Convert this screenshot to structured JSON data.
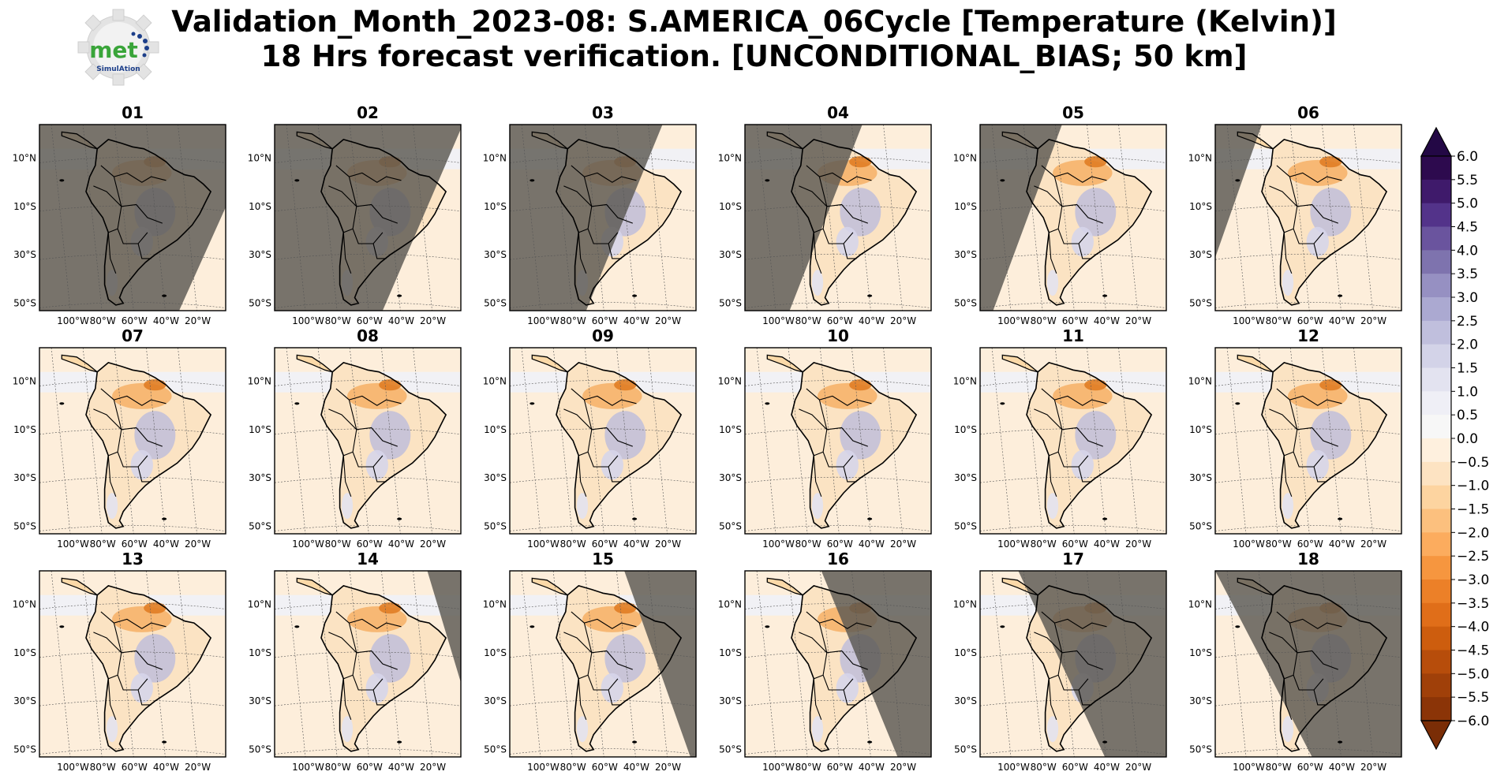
{
  "title_line1": "Validation_Month_2023-08: S.AMERICA_06Cycle [Temperature (Kelvin)]",
  "title_line2": "18 Hrs forecast verification. [UNCONDITIONAL_BIAS; 50 km]",
  "logo": {
    "text": "met",
    "subtext": "SimulAtion"
  },
  "chart_data": {
    "type": "heatmap",
    "panels": [
      "01",
      "02",
      "03",
      "04",
      "05",
      "06",
      "07",
      "08",
      "09",
      "10",
      "11",
      "12",
      "13",
      "14",
      "15",
      "16",
      "17",
      "18"
    ],
    "lat_ticks": [
      "10°N",
      "10°S",
      "30°S",
      "50°S"
    ],
    "lon_ticks": [
      "100°W",
      "80°W",
      "60°W",
      "40°W",
      "20°W"
    ],
    "night_shading": {
      "01": "left",
      "02": "left",
      "03": "left",
      "04": "left",
      "05": "left",
      "06": "left",
      "07": "none",
      "08": "none",
      "09": "none",
      "10": "none",
      "11": "none",
      "12": "none",
      "13": "none",
      "14": "right",
      "15": "right",
      "16": "right",
      "17": "right",
      "18": "right"
    },
    "colorbar": {
      "levels": [
        6.0,
        5.5,
        5.0,
        4.5,
        4.0,
        3.5,
        3.0,
        2.5,
        2.0,
        1.5,
        1.0,
        0.5,
        0.0,
        -0.5,
        -1.0,
        -1.5,
        -2.0,
        -2.5,
        -3.0,
        -3.5,
        -4.0,
        -4.5,
        -5.0,
        -5.5,
        -6.0
      ],
      "labels": [
        "6.0",
        "5.5",
        "5.0",
        "4.5",
        "4.0",
        "3.5",
        "3.0",
        "2.5",
        "2.0",
        "1.5",
        "1.0",
        "0.5",
        "0.0",
        "−0.5",
        "−1.0",
        "−1.5",
        "−2.0",
        "−2.5",
        "−3.0",
        "−3.5",
        "−4.0",
        "−4.5",
        "−5.0",
        "−5.5",
        "−6.0"
      ],
      "colors": [
        "#2d0a4e",
        "#3f1a6b",
        "#53338a",
        "#6a549e",
        "#7e73ae",
        "#9690c2",
        "#aba9d1",
        "#c0bfdd",
        "#d3d3e8",
        "#e3e3f0",
        "#efeff6",
        "#f7f7f7",
        "#fef0de",
        "#fde3c2",
        "#fdd4a0",
        "#fcc07e",
        "#fcac5e",
        "#f6963f",
        "#ec8028",
        "#e06e19",
        "#cd5d0e",
        "#b74d0b",
        "#a04009",
        "#8b3407"
      ],
      "extend": "both"
    }
  }
}
